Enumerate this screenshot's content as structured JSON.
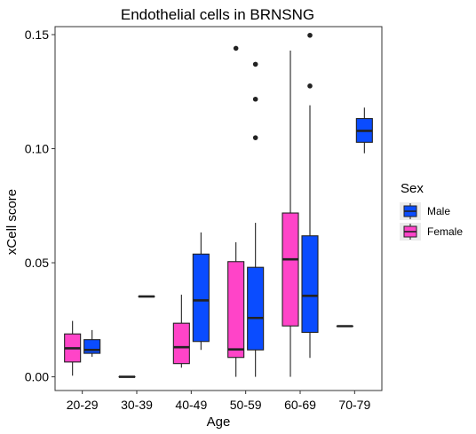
{
  "chart_data": {
    "type": "boxplot",
    "title": "Endothelial cells in BRNSNG",
    "xlabel": "Age",
    "ylabel": "xCell score",
    "ylim": [
      -0.006,
      0.1535
    ],
    "y_ticks": [
      0.0,
      0.05,
      0.1,
      0.15
    ],
    "y_tick_labels": [
      "0.00",
      "0.05",
      "0.10",
      "0.15"
    ],
    "categories": [
      "20-29",
      "30-39",
      "40-49",
      "50-59",
      "60-69",
      "70-79"
    ],
    "grid": false,
    "legend": {
      "title": "Sex",
      "position": "right",
      "entries": [
        {
          "name": "Male",
          "color": "#0a4cff"
        },
        {
          "name": "Female",
          "color": "#ff44c8"
        }
      ]
    },
    "series": [
      {
        "name": "Female",
        "color": "#ff44c8",
        "boxes": [
          {
            "category": "20-29",
            "min": 0.0005,
            "q1": 0.0065,
            "median": 0.0125,
            "q3": 0.0188,
            "max": 0.0245,
            "outliers": []
          },
          {
            "category": "30-39",
            "min": 0.0,
            "q1": 0.0,
            "median": 0.0,
            "q3": 0.0,
            "max": 0.0,
            "outliers": []
          },
          {
            "category": "40-49",
            "min": 0.004,
            "q1": 0.0058,
            "median": 0.013,
            "q3": 0.0235,
            "max": 0.036,
            "outliers": []
          },
          {
            "category": "50-59",
            "min": 0.0,
            "q1": 0.0085,
            "median": 0.012,
            "q3": 0.0505,
            "max": 0.059,
            "outliers": [
              0.144
            ]
          },
          {
            "category": "60-69",
            "min": 0.0,
            "q1": 0.0223,
            "median": 0.0515,
            "q3": 0.0718,
            "max": 0.143,
            "outliers": []
          },
          {
            "category": "70-79",
            "min": 0.0222,
            "q1": 0.0222,
            "median": 0.0222,
            "q3": 0.0222,
            "max": 0.0222,
            "outliers": []
          }
        ]
      },
      {
        "name": "Male",
        "color": "#0a4cff",
        "boxes": [
          {
            "category": "20-29",
            "min": 0.0088,
            "q1": 0.0103,
            "median": 0.0118,
            "q3": 0.0163,
            "max": 0.0205,
            "outliers": []
          },
          {
            "category": "30-39",
            "min": 0.0352,
            "q1": 0.0352,
            "median": 0.0352,
            "q3": 0.0352,
            "max": 0.0352,
            "outliers": []
          },
          {
            "category": "40-49",
            "min": 0.0118,
            "q1": 0.0155,
            "median": 0.0335,
            "q3": 0.0538,
            "max": 0.0633,
            "outliers": []
          },
          {
            "category": "50-59",
            "min": 0.0,
            "q1": 0.0118,
            "median": 0.0258,
            "q3": 0.048,
            "max": 0.0675,
            "outliers": [
              0.1048,
              0.1217,
              0.137
            ]
          },
          {
            "category": "60-69",
            "min": 0.0083,
            "q1": 0.0195,
            "median": 0.0355,
            "q3": 0.0618,
            "max": 0.119,
            "outliers": [
              0.1275,
              0.1497
            ]
          },
          {
            "category": "70-79",
            "min": 0.098,
            "q1": 0.1028,
            "median": 0.1078,
            "q3": 0.1132,
            "max": 0.118,
            "outliers": []
          }
        ]
      }
    ]
  }
}
